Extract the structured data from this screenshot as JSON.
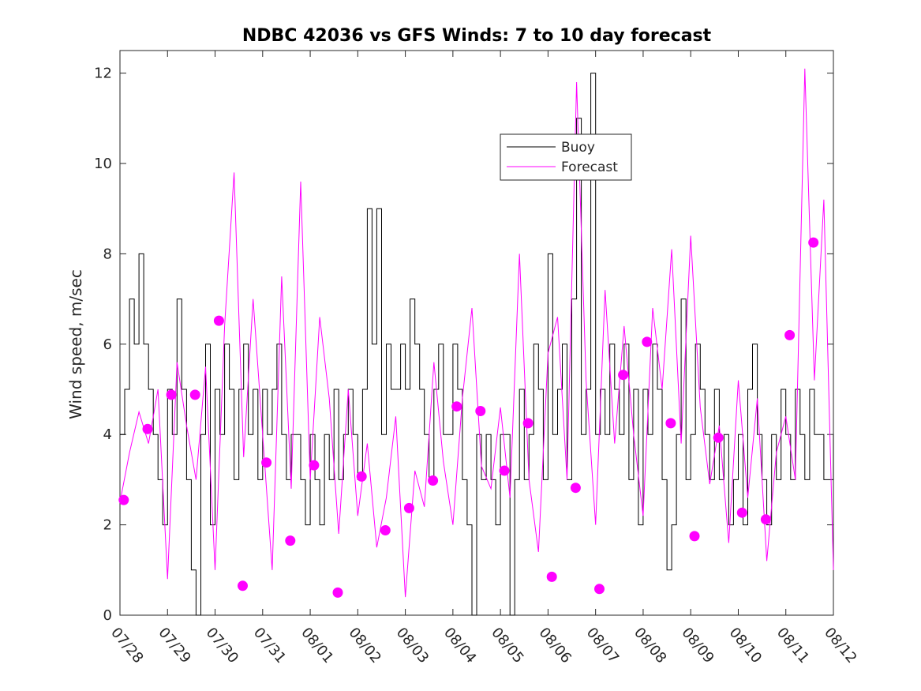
{
  "chart_data": {
    "type": "line",
    "title": "NDBC 42036 vs GFS Winds: 7 to 10 day forecast",
    "xlabel": "",
    "ylabel": "Wind speed, m/sec",
    "xlim": [
      0,
      15
    ],
    "ylim": [
      0,
      12.5
    ],
    "x_tick_values": [
      0,
      1,
      2,
      3,
      4,
      5,
      6,
      7,
      8,
      9,
      10,
      11,
      12,
      13,
      14,
      15
    ],
    "x_tick_labels": [
      "07/28",
      "07/29",
      "07/30",
      "07/31",
      "08/01",
      "08/02",
      "08/03",
      "08/04",
      "08/05",
      "08/06",
      "08/07",
      "08/08",
      "08/09",
      "08/10",
      "08/11",
      "08/12"
    ],
    "y_ticks": [
      0,
      2,
      4,
      6,
      8,
      10,
      12
    ],
    "grid": false,
    "legend": {
      "position": "upper-center",
      "entries": [
        "Buoy",
        "Forecast"
      ]
    },
    "colors": {
      "buoy": "#000000",
      "forecast": "#ff00ff",
      "axes": "#262626"
    },
    "series": [
      {
        "name": "Buoy",
        "style": "step",
        "x": [
          0,
          0.1,
          0.2,
          0.3,
          0.4,
          0.5,
          0.6,
          0.7,
          0.8,
          0.9,
          1.0,
          1.1,
          1.2,
          1.3,
          1.4,
          1.5,
          1.6,
          1.7,
          1.8,
          1.9,
          2.0,
          2.1,
          2.2,
          2.3,
          2.4,
          2.5,
          2.6,
          2.7,
          2.8,
          2.9,
          3.0,
          3.1,
          3.2,
          3.3,
          3.4,
          3.5,
          3.6,
          3.7,
          3.8,
          3.9,
          4.0,
          4.1,
          4.2,
          4.3,
          4.4,
          4.5,
          4.6,
          4.7,
          4.8,
          4.9,
          5.0,
          5.1,
          5.2,
          5.3,
          5.4,
          5.5,
          5.6,
          5.7,
          5.8,
          5.9,
          6.0,
          6.1,
          6.2,
          6.3,
          6.4,
          6.5,
          6.6,
          6.7,
          6.8,
          6.9,
          7.0,
          7.1,
          7.2,
          7.3,
          7.4,
          7.5,
          7.6,
          7.7,
          7.8,
          7.9,
          8.0,
          8.1,
          8.2,
          8.3,
          8.4,
          8.5,
          8.6,
          8.7,
          8.8,
          8.9,
          9.0,
          9.1,
          9.2,
          9.3,
          9.4,
          9.5,
          9.6,
          9.7,
          9.8,
          9.9,
          10.0,
          10.1,
          10.2,
          10.3,
          10.4,
          10.5,
          10.6,
          10.7,
          10.8,
          10.9,
          11.0,
          11.1,
          11.2,
          11.3,
          11.4,
          11.5,
          11.6,
          11.7,
          11.8,
          11.9,
          12.0,
          12.1,
          12.2,
          12.3,
          12.4,
          12.5,
          12.6,
          12.7,
          12.8,
          12.9,
          13.0,
          13.1,
          13.2,
          13.3,
          13.4,
          13.5,
          13.6,
          13.7,
          13.8,
          13.9,
          14.0,
          14.1,
          14.2,
          14.3,
          14.4,
          14.5,
          14.6,
          14.7,
          14.8,
          14.9,
          15.0
        ],
        "values": [
          4,
          5,
          7,
          6,
          8,
          6,
          5,
          4,
          3,
          2,
          5,
          4,
          7,
          5,
          3,
          1,
          0,
          4,
          6,
          2,
          5,
          4,
          6,
          5,
          3,
          5,
          6,
          4,
          5,
          3,
          5,
          4,
          5,
          6,
          4,
          3,
          4,
          4,
          3,
          2,
          4,
          3,
          2,
          4,
          3,
          5,
          3,
          4,
          5,
          4,
          3,
          5,
          9,
          6,
          9,
          4,
          6,
          5,
          5,
          6,
          5,
          7,
          6,
          5,
          4,
          3,
          5,
          6,
          4,
          4,
          6,
          5,
          3,
          2,
          0,
          4,
          3,
          4,
          3,
          2,
          4,
          4,
          0,
          3,
          5,
          3,
          4,
          6,
          5,
          3,
          8,
          4,
          5,
          6,
          3,
          7,
          11,
          4,
          5,
          12,
          4,
          5,
          4,
          6,
          5,
          4,
          6,
          3,
          5,
          2,
          5,
          4,
          6,
          5,
          3,
          1,
          2,
          4,
          7,
          3,
          4,
          6,
          5,
          4,
          3,
          5,
          3,
          4,
          2,
          3,
          4,
          2,
          5,
          6,
          4,
          3,
          2,
          4,
          3,
          5,
          4,
          3,
          5,
          4,
          3,
          5,
          4,
          4,
          3,
          3,
          4
        ]
      },
      {
        "name": "Forecast",
        "style": "lines",
        "x": [
          0,
          0.2,
          0.4,
          0.6,
          0.8,
          1.0,
          1.2,
          1.4,
          1.6,
          1.8,
          2.0,
          2.2,
          2.4,
          2.6,
          2.8,
          3.0,
          3.2,
          3.4,
          3.6,
          3.8,
          4.0,
          4.2,
          4.4,
          4.6,
          4.8,
          5.0,
          5.2,
          5.4,
          5.6,
          5.8,
          6.0,
          6.2,
          6.4,
          6.6,
          6.8,
          7.0,
          7.2,
          7.4,
          7.6,
          7.8,
          8.0,
          8.2,
          8.4,
          8.6,
          8.8,
          9.0,
          9.2,
          9.4,
          9.6,
          9.8,
          10.0,
          10.2,
          10.4,
          10.6,
          10.8,
          11.0,
          11.2,
          11.4,
          11.6,
          11.8,
          12.0,
          12.2,
          12.4,
          12.6,
          12.8,
          13.0,
          13.2,
          13.4,
          13.6,
          13.8,
          14.0,
          14.2,
          14.4,
          14.6,
          14.8,
          15.0
        ],
        "values": [
          2.5,
          3.6,
          4.5,
          3.8,
          5.0,
          0.8,
          5.6,
          4.2,
          3.0,
          5.5,
          1.0,
          6.4,
          9.8,
          3.5,
          7.0,
          4.0,
          1.0,
          7.5,
          2.8,
          9.6,
          3.0,
          6.6,
          4.8,
          1.8,
          5.0,
          2.2,
          3.8,
          1.5,
          2.6,
          4.4,
          0.4,
          3.2,
          2.4,
          5.6,
          3.4,
          2.0,
          4.8,
          6.8,
          3.3,
          2.8,
          4.6,
          2.6,
          8.0,
          3.0,
          1.4,
          5.8,
          6.6,
          3.0,
          11.8,
          5.2,
          2.0,
          7.2,
          3.8,
          6.4,
          4.0,
          2.2,
          6.8,
          5.0,
          8.1,
          3.8,
          8.4,
          4.6,
          2.9,
          4.2,
          1.6,
          5.2,
          2.6,
          4.8,
          1.2,
          3.6,
          4.4,
          3.0,
          12.1,
          5.2,
          9.2,
          1.0
        ]
      },
      {
        "name": "",
        "style": "markers",
        "x": [
          0.08,
          0.58,
          1.08,
          1.58,
          2.08,
          2.58,
          3.08,
          3.58,
          4.08,
          4.58,
          5.08,
          5.58,
          6.08,
          6.58,
          7.08,
          7.58,
          8.08,
          8.58,
          9.08,
          9.58,
          10.08,
          10.58,
          11.08,
          11.58,
          12.08,
          12.58,
          13.08,
          13.58,
          14.08,
          14.58
        ],
        "values": [
          2.55,
          4.12,
          4.88,
          4.88,
          6.52,
          0.65,
          3.38,
          1.65,
          3.32,
          0.5,
          3.07,
          1.88,
          2.37,
          2.98,
          4.62,
          4.52,
          3.2,
          4.25,
          0.85,
          2.82,
          0.58,
          5.32,
          6.05,
          4.25,
          1.75,
          3.93,
          2.27,
          2.12,
          6.2,
          8.25
        ]
      }
    ]
  }
}
